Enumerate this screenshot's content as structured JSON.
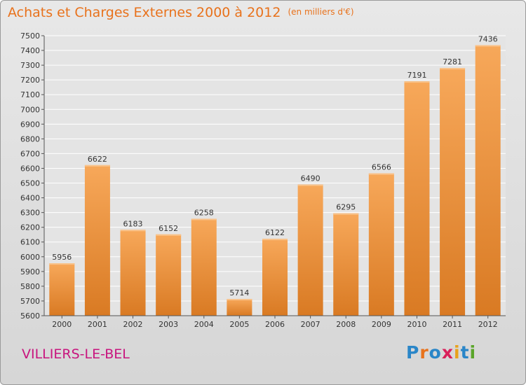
{
  "header": {
    "title": "Achats et Charges Externes 2000 à 2012",
    "unit": "(en milliers d'€)"
  },
  "footer": {
    "place": "VILLIERS-LE-BEL",
    "brand": "Proxiti"
  },
  "colors": {
    "title": "#e8721c",
    "place": "#c8157e",
    "bar_light": "#f7a85a",
    "bar_dark": "#d97a23"
  },
  "chart_data": {
    "type": "bar",
    "title": "Achats et Charges Externes 2000 à 2012",
    "subtitle": "(en milliers d'€)",
    "xlabel": "",
    "ylabel": "",
    "categories": [
      "2000",
      "2001",
      "2002",
      "2003",
      "2004",
      "2005",
      "2006",
      "2007",
      "2008",
      "2009",
      "2010",
      "2011",
      "2012"
    ],
    "values": [
      5956,
      6622,
      6183,
      6152,
      6258,
      5714,
      6122,
      6490,
      6295,
      6566,
      7191,
      7281,
      7436
    ],
    "ylim": [
      5600,
      7500
    ],
    "yticks": [
      5600,
      5700,
      5800,
      5900,
      6000,
      6100,
      6200,
      6300,
      6400,
      6500,
      6600,
      6700,
      6800,
      6900,
      7000,
      7100,
      7200,
      7300,
      7400,
      7500
    ],
    "grid": true,
    "legend": "none"
  }
}
